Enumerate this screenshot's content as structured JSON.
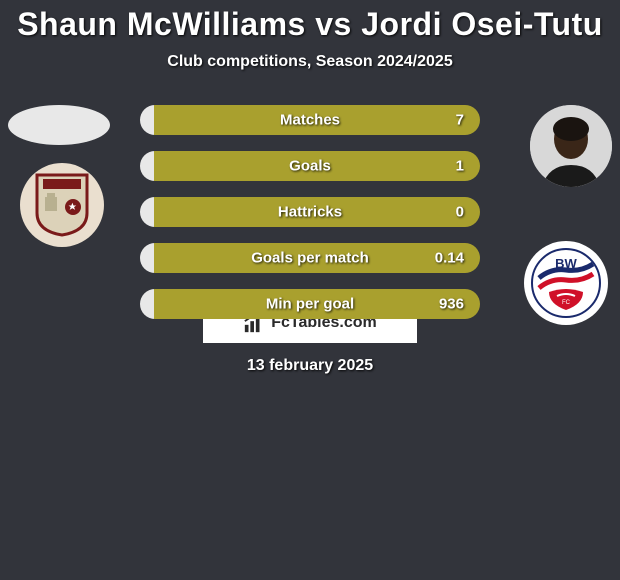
{
  "title": "Shaun McWilliams vs Jordi Osei-Tutu",
  "subtitle": "Club competitions, Season 2024/2025",
  "date": "13 february 2025",
  "branding": "FcTables.com",
  "colors": {
    "bg": "#32343b",
    "bar_left": "#e8e8e8",
    "bar_right": "#a9a02e",
    "text": "#ffffff"
  },
  "stats": [
    {
      "label": "Matches",
      "right_value": "7",
      "left_pct": 4,
      "right_pct": 96
    },
    {
      "label": "Goals",
      "right_value": "1",
      "left_pct": 4,
      "right_pct": 96
    },
    {
      "label": "Hattricks",
      "right_value": "0",
      "left_pct": 4,
      "right_pct": 96
    },
    {
      "label": "Goals per match",
      "right_value": "0.14",
      "left_pct": 4,
      "right_pct": 96
    },
    {
      "label": "Min per goal",
      "right_value": "936",
      "left_pct": 4,
      "right_pct": 96
    }
  ]
}
